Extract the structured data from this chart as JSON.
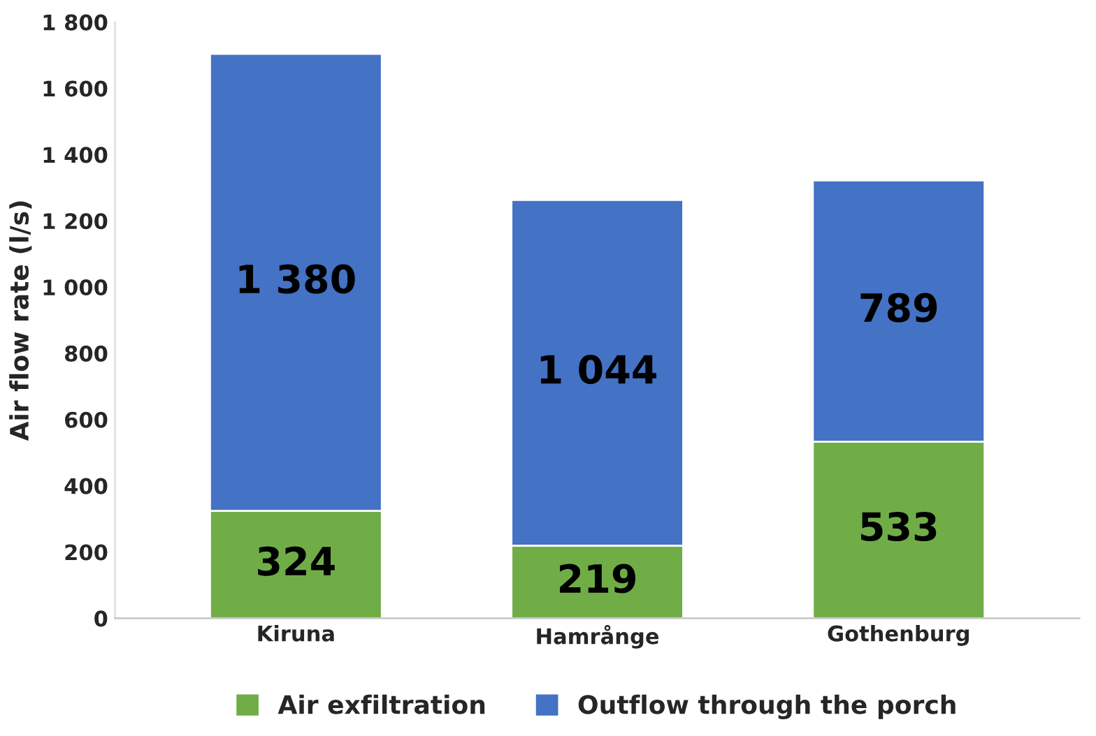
{
  "chart_data": {
    "type": "bar",
    "stacked": true,
    "ylabel": "Air flow rate (l/s)",
    "categories": [
      "Kiruna",
      "Hamrånge",
      "Gothenburg"
    ],
    "series": [
      {
        "name": "Air exfiltration",
        "color": "#70ad47",
        "values": [
          324,
          219,
          533
        ],
        "value_labels": [
          "324",
          "219",
          "533"
        ]
      },
      {
        "name": "Outflow through the porch",
        "color": "#4472c4",
        "values": [
          1380,
          1044,
          789
        ],
        "value_labels": [
          "1 380",
          "1 044",
          "789"
        ]
      }
    ],
    "ylim": [
      0,
      1800
    ],
    "yticks": [
      0,
      200,
      400,
      600,
      800,
      {
        "value": 1000,
        "label": "1 000"
      },
      {
        "value": 1200,
        "label": "1 200"
      },
      {
        "value": 1400,
        "label": "1 400"
      },
      {
        "value": 1600,
        "label": "1 600"
      },
      {
        "value": 1800,
        "label": "1 800"
      }
    ],
    "grid": false,
    "legend": "bottom"
  }
}
